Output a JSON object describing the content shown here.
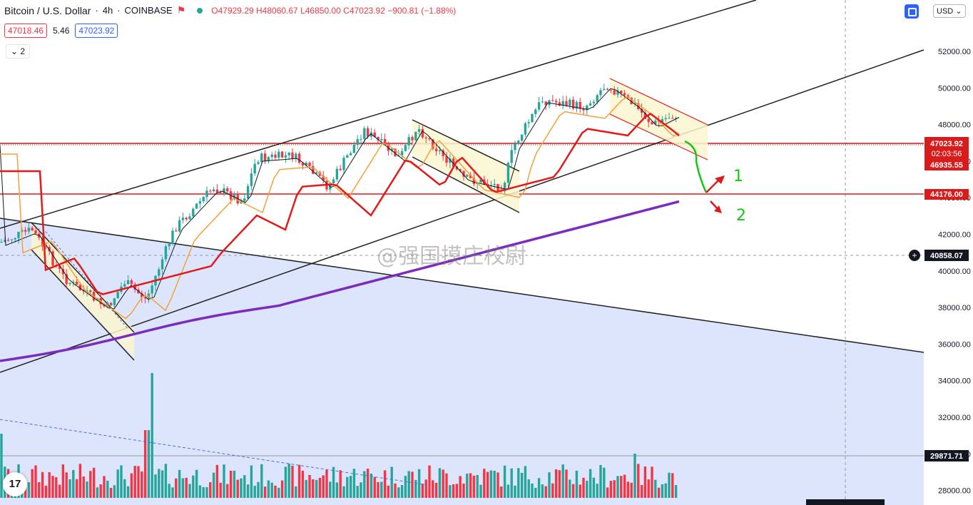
{
  "header": {
    "symbol": "Bitcoin / U.S. Dollar",
    "interval": "4h",
    "exchange": "COINBASE",
    "open": "O47929.29",
    "high": "H48060.67",
    "low": "L46850.00",
    "close": "C47023.92",
    "change": "−900.81 (−1.88%)"
  },
  "spread": {
    "bid": "47018.46",
    "spread": "5.46",
    "ask": "47023.92"
  },
  "indicators_collapsed": "2",
  "currency": "USD",
  "watermark": "@强国摸庄校尉",
  "logo": "17",
  "axis_ticks": [
    "52000.00",
    "50000.00",
    "48000.00",
    "46000.00",
    "44000.00",
    "42000.00",
    "40000.00",
    "38000.00",
    "36000.00",
    "34000.00",
    "32000.00",
    "30000.00",
    "28000.00"
  ],
  "price_labels": {
    "current": "47023.92",
    "countdown": "02:03:56",
    "level_1": "46935.55",
    "level_2": "44176.00",
    "crosshair": "40858.07",
    "volume_level": "29871.71"
  },
  "annotations": {
    "scenario_1": "1",
    "scenario_2": "2"
  },
  "colors": {
    "up": "#26a69a",
    "down": "#f23645",
    "ema_purple": "#7b2cbf",
    "ema_red": "#e21a1a",
    "ema_orange": "#f7a33a",
    "fill": "#d6e0fb"
  }
}
